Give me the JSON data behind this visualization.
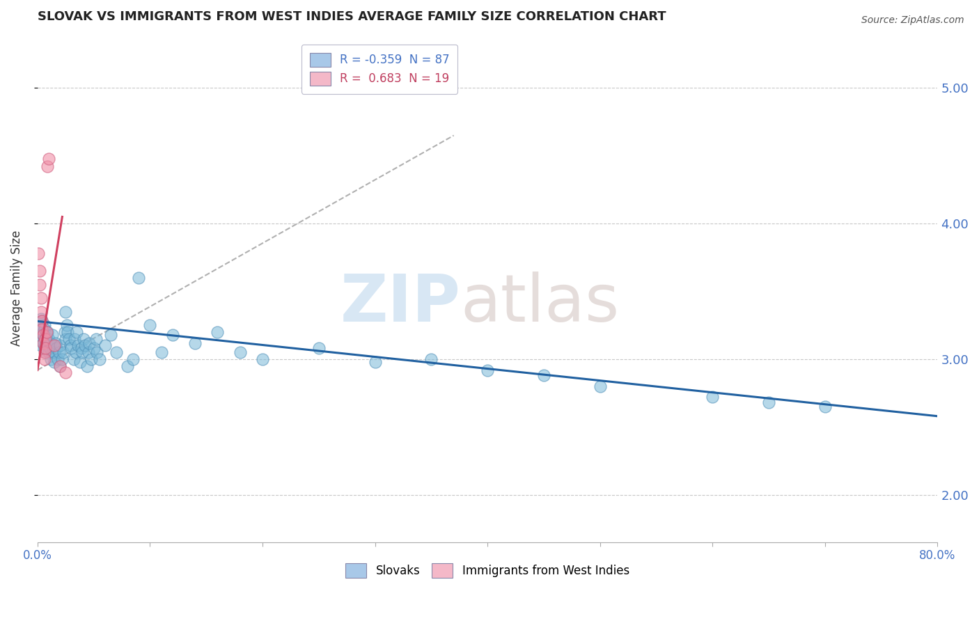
{
  "title": "SLOVAK VS IMMIGRANTS FROM WEST INDIES AVERAGE FAMILY SIZE CORRELATION CHART",
  "source": "Source: ZipAtlas.com",
  "ylabel": "Average Family Size",
  "right_yticks": [
    2.0,
    3.0,
    4.0,
    5.0
  ],
  "xlim": [
    0.0,
    0.8
  ],
  "ylim": [
    1.65,
    5.4
  ],
  "legend_entries": [
    {
      "label": "R = -0.359  N = 87",
      "color": "#a8c8e8"
    },
    {
      "label": "R =  0.683  N = 19",
      "color": "#f4b8c8"
    }
  ],
  "legend_labels": [
    "Slovaks",
    "Immigrants from West Indies"
  ],
  "slovak_color": "#7ab8d8",
  "west_indies_color": "#f090a8",
  "slovak_scatter": [
    [
      0.001,
      3.2
    ],
    [
      0.002,
      3.18
    ],
    [
      0.002,
      3.25
    ],
    [
      0.003,
      3.1
    ],
    [
      0.003,
      3.22
    ],
    [
      0.003,
      3.3
    ],
    [
      0.004,
      3.15
    ],
    [
      0.004,
      3.28
    ],
    [
      0.005,
      3.12
    ],
    [
      0.005,
      3.2
    ],
    [
      0.005,
      3.18
    ],
    [
      0.006,
      3.08
    ],
    [
      0.006,
      3.25
    ],
    [
      0.006,
      3.22
    ],
    [
      0.007,
      3.15
    ],
    [
      0.007,
      3.1
    ],
    [
      0.007,
      3.05
    ],
    [
      0.008,
      3.18
    ],
    [
      0.008,
      3.12
    ],
    [
      0.009,
      3.2
    ],
    [
      0.009,
      3.1
    ],
    [
      0.01,
      3.05
    ],
    [
      0.01,
      3.15
    ],
    [
      0.011,
      3.08
    ],
    [
      0.012,
      3.12
    ],
    [
      0.012,
      3.0
    ],
    [
      0.013,
      3.05
    ],
    [
      0.013,
      3.18
    ],
    [
      0.014,
      3.1
    ],
    [
      0.015,
      3.05
    ],
    [
      0.015,
      2.98
    ],
    [
      0.016,
      3.12
    ],
    [
      0.017,
      3.08
    ],
    [
      0.018,
      3.0
    ],
    [
      0.019,
      3.05
    ],
    [
      0.02,
      3.1
    ],
    [
      0.02,
      2.95
    ],
    [
      0.022,
      3.0
    ],
    [
      0.023,
      3.05
    ],
    [
      0.024,
      3.2
    ],
    [
      0.025,
      3.15
    ],
    [
      0.025,
      3.35
    ],
    [
      0.026,
      3.25
    ],
    [
      0.027,
      3.2
    ],
    [
      0.028,
      3.15
    ],
    [
      0.029,
      3.1
    ],
    [
      0.03,
      3.08
    ],
    [
      0.032,
      3.0
    ],
    [
      0.033,
      3.15
    ],
    [
      0.034,
      3.05
    ],
    [
      0.035,
      3.2
    ],
    [
      0.036,
      3.1
    ],
    [
      0.038,
      2.98
    ],
    [
      0.039,
      3.08
    ],
    [
      0.04,
      3.05
    ],
    [
      0.041,
      3.15
    ],
    [
      0.042,
      3.1
    ],
    [
      0.044,
      2.95
    ],
    [
      0.045,
      3.05
    ],
    [
      0.046,
      3.12
    ],
    [
      0.048,
      3.0
    ],
    [
      0.05,
      3.08
    ],
    [
      0.052,
      3.15
    ],
    [
      0.053,
      3.05
    ],
    [
      0.055,
      3.0
    ],
    [
      0.06,
      3.1
    ],
    [
      0.065,
      3.18
    ],
    [
      0.07,
      3.05
    ],
    [
      0.08,
      2.95
    ],
    [
      0.085,
      3.0
    ],
    [
      0.09,
      3.6
    ],
    [
      0.1,
      3.25
    ],
    [
      0.11,
      3.05
    ],
    [
      0.12,
      3.18
    ],
    [
      0.14,
      3.12
    ],
    [
      0.16,
      3.2
    ],
    [
      0.18,
      3.05
    ],
    [
      0.2,
      3.0
    ],
    [
      0.25,
      3.08
    ],
    [
      0.3,
      2.98
    ],
    [
      0.35,
      3.0
    ],
    [
      0.4,
      2.92
    ],
    [
      0.45,
      2.88
    ],
    [
      0.5,
      2.8
    ],
    [
      0.6,
      2.72
    ],
    [
      0.65,
      2.68
    ],
    [
      0.7,
      2.65
    ]
  ],
  "west_indies_scatter": [
    [
      0.001,
      3.78
    ],
    [
      0.002,
      3.65
    ],
    [
      0.002,
      3.55
    ],
    [
      0.003,
      3.45
    ],
    [
      0.003,
      3.35
    ],
    [
      0.004,
      3.28
    ],
    [
      0.004,
      3.22
    ],
    [
      0.005,
      3.18
    ],
    [
      0.005,
      3.12
    ],
    [
      0.006,
      3.05
    ],
    [
      0.006,
      3.0
    ],
    [
      0.007,
      3.15
    ],
    [
      0.007,
      3.08
    ],
    [
      0.008,
      3.2
    ],
    [
      0.009,
      4.42
    ],
    [
      0.01,
      4.48
    ],
    [
      0.015,
      3.1
    ],
    [
      0.02,
      2.95
    ],
    [
      0.025,
      2.9
    ]
  ],
  "watermark_zip_color": "#c8ddf0",
  "watermark_atlas_color": "#d8ccc8",
  "blue_line": {
    "x0": 0.0,
    "x1": 0.8,
    "y0": 3.28,
    "y1": 2.58
  },
  "pink_line": {
    "x0": 0.0,
    "x1": 0.022,
    "y0": 2.92,
    "y1": 4.05
  },
  "grey_dashed_line": {
    "x0": 0.0,
    "x1": 0.37,
    "y0": 2.92,
    "y1": 4.65
  }
}
